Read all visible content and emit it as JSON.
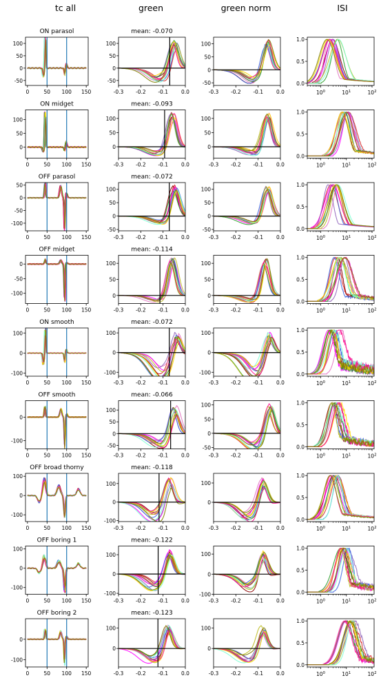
{
  "figure": {
    "column_titles": [
      "tc all",
      "green",
      "green norm",
      "ISI"
    ]
  },
  "chart_data": {
    "type": "line",
    "grid": false,
    "legend": "none",
    "rows": [
      {
        "cell_type": "ON parasol",
        "tc_all": {
          "xlim": [
            -5,
            155
          ],
          "ylim": [
            -70,
            125
          ],
          "xticks": [
            0,
            50,
            100,
            150
          ],
          "yticks": [
            -50,
            0,
            50,
            100
          ],
          "vlines": [
            50,
            100
          ],
          "peak": 120,
          "trough": -55,
          "shape": "on"
        },
        "green": {
          "mean_label": "mean: -0.070",
          "mean": -0.07,
          "xlim": [
            -0.3,
            0.0
          ],
          "ylim": [
            -70,
            125
          ],
          "yticks": [
            -50,
            0,
            50,
            100
          ],
          "peak": 115,
          "dip": -40,
          "peak_x": -0.04
        },
        "green_norm": {
          "xlim": [
            -0.3,
            0.0
          ],
          "ylim": [
            -60,
            125
          ],
          "yticks": [
            -50,
            0,
            50,
            100
          ],
          "peak": 115,
          "dip": -40,
          "peak_x": -0.05
        },
        "isi": {
          "ylim": [
            -0.05,
            1.05
          ],
          "yticks": [
            0.0,
            0.5,
            1.0
          ],
          "peak_x_log": 0.45,
          "noisy": 0
        }
      },
      {
        "cell_type": "ON midget",
        "tc_all": {
          "xlim": [
            -5,
            155
          ],
          "ylim": [
            -40,
            135
          ],
          "xticks": [
            0,
            50,
            100,
            150
          ],
          "yticks": [
            0,
            50,
            100
          ],
          "vlines": [
            50,
            100
          ],
          "peak": 125,
          "trough": -28,
          "shape": "on"
        },
        "green": {
          "mean_label": "mean: -0.093",
          "mean": -0.093,
          "xlim": [
            -0.3,
            0.0
          ],
          "ylim": [
            -40,
            130
          ],
          "yticks": [
            0,
            50,
            100
          ],
          "peak": 120,
          "dip": -20,
          "peak_x": -0.05
        },
        "green_norm": {
          "xlim": [
            -0.3,
            0.0
          ],
          "ylim": [
            -40,
            130
          ],
          "yticks": [
            0,
            50,
            100
          ],
          "peak": 120,
          "dip": -20,
          "peak_x": -0.05
        },
        "isi": {
          "ylim": [
            -0.05,
            1.05
          ],
          "yticks": [
            0.0,
            0.5,
            1.0
          ],
          "peak_x_log": 0.95,
          "noisy": 0.05
        }
      },
      {
        "cell_type": "OFF parasol",
        "tc_all": {
          "xlim": [
            -5,
            155
          ],
          "ylim": [
            -130,
            60
          ],
          "xticks": [
            0,
            50,
            100,
            150
          ],
          "yticks": [
            -100,
            -50,
            0,
            50
          ],
          "vlines": [
            50,
            100
          ],
          "peak": 55,
          "trough": -115,
          "shape": "off"
        },
        "green": {
          "mean_label": "mean: -0.072",
          "mean": -0.072,
          "xlim": [
            -0.3,
            0.0
          ],
          "ylim": [
            -55,
            125
          ],
          "yticks": [
            -50,
            0,
            50,
            100
          ],
          "peak": 120,
          "dip": -20,
          "peak_x": -0.04
        },
        "green_norm": {
          "xlim": [
            -0.3,
            0.0
          ],
          "ylim": [
            -55,
            125
          ],
          "yticks": [
            -50,
            0,
            50,
            100
          ],
          "peak": 115,
          "dip": -20,
          "peak_x": -0.05
        },
        "isi": {
          "ylim": [
            -0.05,
            1.05
          ],
          "yticks": [
            0.0,
            0.5,
            1.0
          ],
          "peak_x_log": 0.5,
          "noisy": 0
        }
      },
      {
        "cell_type": "OFF midget",
        "tc_all": {
          "xlim": [
            -5,
            155
          ],
          "ylim": [
            -135,
            30
          ],
          "xticks": [
            0,
            50,
            100,
            150
          ],
          "yticks": [
            -100,
            -50,
            0
          ],
          "vlines": [
            50,
            100
          ],
          "peak": 15,
          "trough": -120,
          "shape": "off"
        },
        "green": {
          "mean_label": "mean: -0.114",
          "mean": -0.114,
          "xlim": [
            -0.3,
            0.0
          ],
          "ylim": [
            -25,
            125
          ],
          "yticks": [
            0,
            50,
            100
          ],
          "peak": 120,
          "dip": -15,
          "peak_x": -0.05
        },
        "green_norm": {
          "xlim": [
            -0.3,
            0.0
          ],
          "ylim": [
            -25,
            125
          ],
          "yticks": [
            0,
            50,
            100
          ],
          "peak": 115,
          "dip": -15,
          "peak_x": -0.06
        },
        "isi": {
          "ylim": [
            -0.05,
            1.05
          ],
          "yticks": [
            0.0,
            0.5,
            1.0
          ],
          "peak_x_log": 0.75,
          "noisy": 0.1
        }
      },
      {
        "cell_type": "ON smooth",
        "tc_all": {
          "xlim": [
            -5,
            155
          ],
          "ylim": [
            -115,
            125
          ],
          "xticks": [
            0,
            50,
            100,
            150
          ],
          "yticks": [
            -100,
            0,
            100
          ],
          "vlines": [
            50,
            100
          ],
          "peak": 110,
          "trough": -90,
          "shape": "on"
        },
        "green": {
          "mean_label": "mean: -0.072",
          "mean": -0.072,
          "xlim": [
            -0.3,
            0.0
          ],
          "ylim": [
            -120,
            125
          ],
          "yticks": [
            -100,
            0,
            100
          ],
          "peak": 110,
          "dip": -90,
          "peak_x": -0.03
        },
        "green_norm": {
          "xlim": [
            -0.3,
            0.0
          ],
          "ylim": [
            -120,
            125
          ],
          "yticks": [
            -100,
            0,
            100
          ],
          "peak": 110,
          "dip": -90,
          "peak_x": -0.04
        },
        "isi": {
          "ylim": [
            -0.05,
            1.05
          ],
          "yticks": [
            0.0,
            0.5,
            1.0
          ],
          "peak_x_log": 0.55,
          "noisy": 0.35
        }
      },
      {
        "cell_type": "OFF smooth",
        "tc_all": {
          "xlim": [
            -5,
            155
          ],
          "ylim": [
            -135,
            70
          ],
          "xticks": [
            0,
            50,
            100,
            150
          ],
          "yticks": [
            -100,
            0
          ],
          "vlines": [
            50,
            100
          ],
          "peak": 40,
          "trough": -115,
          "shape": "off"
        },
        "green": {
          "mean_label": "mean: -0.066",
          "mean": -0.066,
          "xlim": [
            -0.3,
            0.0
          ],
          "ylim": [
            -65,
            140
          ],
          "yticks": [
            -50,
            0,
            50,
            100
          ],
          "peak": 120,
          "dip": -40,
          "peak_x": -0.04
        },
        "green_norm": {
          "xlim": [
            -0.3,
            0.0
          ],
          "ylim": [
            -55,
            115
          ],
          "yticks": [
            -50,
            0,
            50,
            100
          ],
          "peak": 110,
          "dip": -40,
          "peak_x": -0.04
        },
        "isi": {
          "ylim": [
            -0.05,
            1.05
          ],
          "yticks": [
            0.0,
            0.5,
            1.0
          ],
          "peak_x_log": 0.6,
          "noisy": 0.25
        }
      },
      {
        "cell_type": "OFF broad thorny",
        "tc_all": {
          "xlim": [
            -5,
            155
          ],
          "ylim": [
            -135,
            115
          ],
          "xticks": [
            0,
            50,
            100,
            150
          ],
          "yticks": [
            -100,
            0,
            100
          ],
          "vlines": [
            50,
            100
          ],
          "peak": 80,
          "trough": -100,
          "shape": "broad"
        },
        "green": {
          "mean_label": "mean: -0.118",
          "mean": -0.118,
          "xlim": [
            -0.3,
            0.0
          ],
          "ylim": [
            -105,
            155
          ],
          "yticks": [
            -100,
            0,
            100
          ],
          "peak": 130,
          "dip": -70,
          "peak_x": -0.06
        },
        "green_norm": {
          "xlim": [
            -0.3,
            0.0
          ],
          "ylim": [
            -100,
            150
          ],
          "yticks": [
            0,
            100
          ],
          "peak": 125,
          "dip": -70,
          "peak_x": -0.07
        },
        "isi": {
          "ylim": [
            -0.05,
            1.05
          ],
          "yticks": [
            0.0,
            0.5,
            1.0
          ],
          "peak_x_log": 0.5,
          "noisy": 0.05
        }
      },
      {
        "cell_type": "OFF boring 1",
        "tc_all": {
          "xlim": [
            -5,
            155
          ],
          "ylim": [
            -135,
            115
          ],
          "xticks": [
            0,
            50,
            100,
            150
          ],
          "yticks": [
            -100,
            0,
            100
          ],
          "vlines": [
            50,
            100
          ],
          "peak": 60,
          "trough": -110,
          "shape": "broad"
        },
        "green": {
          "mean_label": "mean: -0.122",
          "mean": -0.122,
          "xlim": [
            -0.3,
            0.0
          ],
          "ylim": [
            -105,
            145
          ],
          "yticks": [
            -100,
            0,
            100
          ],
          "peak": 125,
          "dip": -60,
          "peak_x": -0.06
        },
        "green_norm": {
          "xlim": [
            -0.3,
            0.0
          ],
          "ylim": [
            -100,
            140
          ],
          "yticks": [
            -100,
            0,
            100
          ],
          "peak": 115,
          "dip": -60,
          "peak_x": -0.07
        },
        "isi": {
          "ylim": [
            -0.05,
            1.05
          ],
          "yticks": [
            0.0,
            0.5,
            1.0
          ],
          "peak_x_log": 0.95,
          "noisy": 0.2
        }
      },
      {
        "cell_type": "OFF boring 2",
        "tc_all": {
          "xlim": [
            -5,
            155
          ],
          "ylim": [
            -135,
            100
          ],
          "xticks": [
            0,
            50,
            100,
            150
          ],
          "yticks": [
            -100,
            0
          ],
          "vlines": [
            50,
            100
          ],
          "peak": 45,
          "trough": -115,
          "shape": "off"
        },
        "green": {
          "mean_label": "mean: -0.123",
          "mean": -0.123,
          "xlim": [
            -0.3,
            0.0
          ],
          "ylim": [
            -90,
            145
          ],
          "yticks": [
            0,
            100
          ],
          "peak": 115,
          "dip": -50,
          "peak_x": -0.07
        },
        "green_norm": {
          "xlim": [
            -0.3,
            0.0
          ],
          "ylim": [
            -90,
            145
          ],
          "yticks": [
            0,
            100
          ],
          "peak": 110,
          "dip": -45,
          "peak_x": -0.07
        },
        "isi": {
          "ylim": [
            -0.05,
            1.05
          ],
          "yticks": [
            0.0,
            0.5,
            1.0
          ],
          "peak_x_log": 1.1,
          "noisy": 0.2
        }
      }
    ],
    "green_xticks": [
      -0.3,
      -0.2,
      -0.1,
      0.0
    ],
    "isi_xscale": "log",
    "isi_xlim": [
      0.3,
      120
    ],
    "isi_xticks": [
      1,
      10,
      100
    ],
    "colors": {
      "vline_tc": "#1f77b4",
      "refline": "#000000",
      "traces": [
        "#d62728",
        "#8b0000",
        "#e377c2",
        "#ff00ff",
        "#9467bd",
        "#4169e1",
        "#2ca02c",
        "#bcbd22",
        "#ffd700",
        "#7fffd4",
        "#ff1493",
        "#808000",
        "#a0522d",
        "#ffb6c1",
        "#00bfff",
        "#adff2f"
      ]
    }
  }
}
